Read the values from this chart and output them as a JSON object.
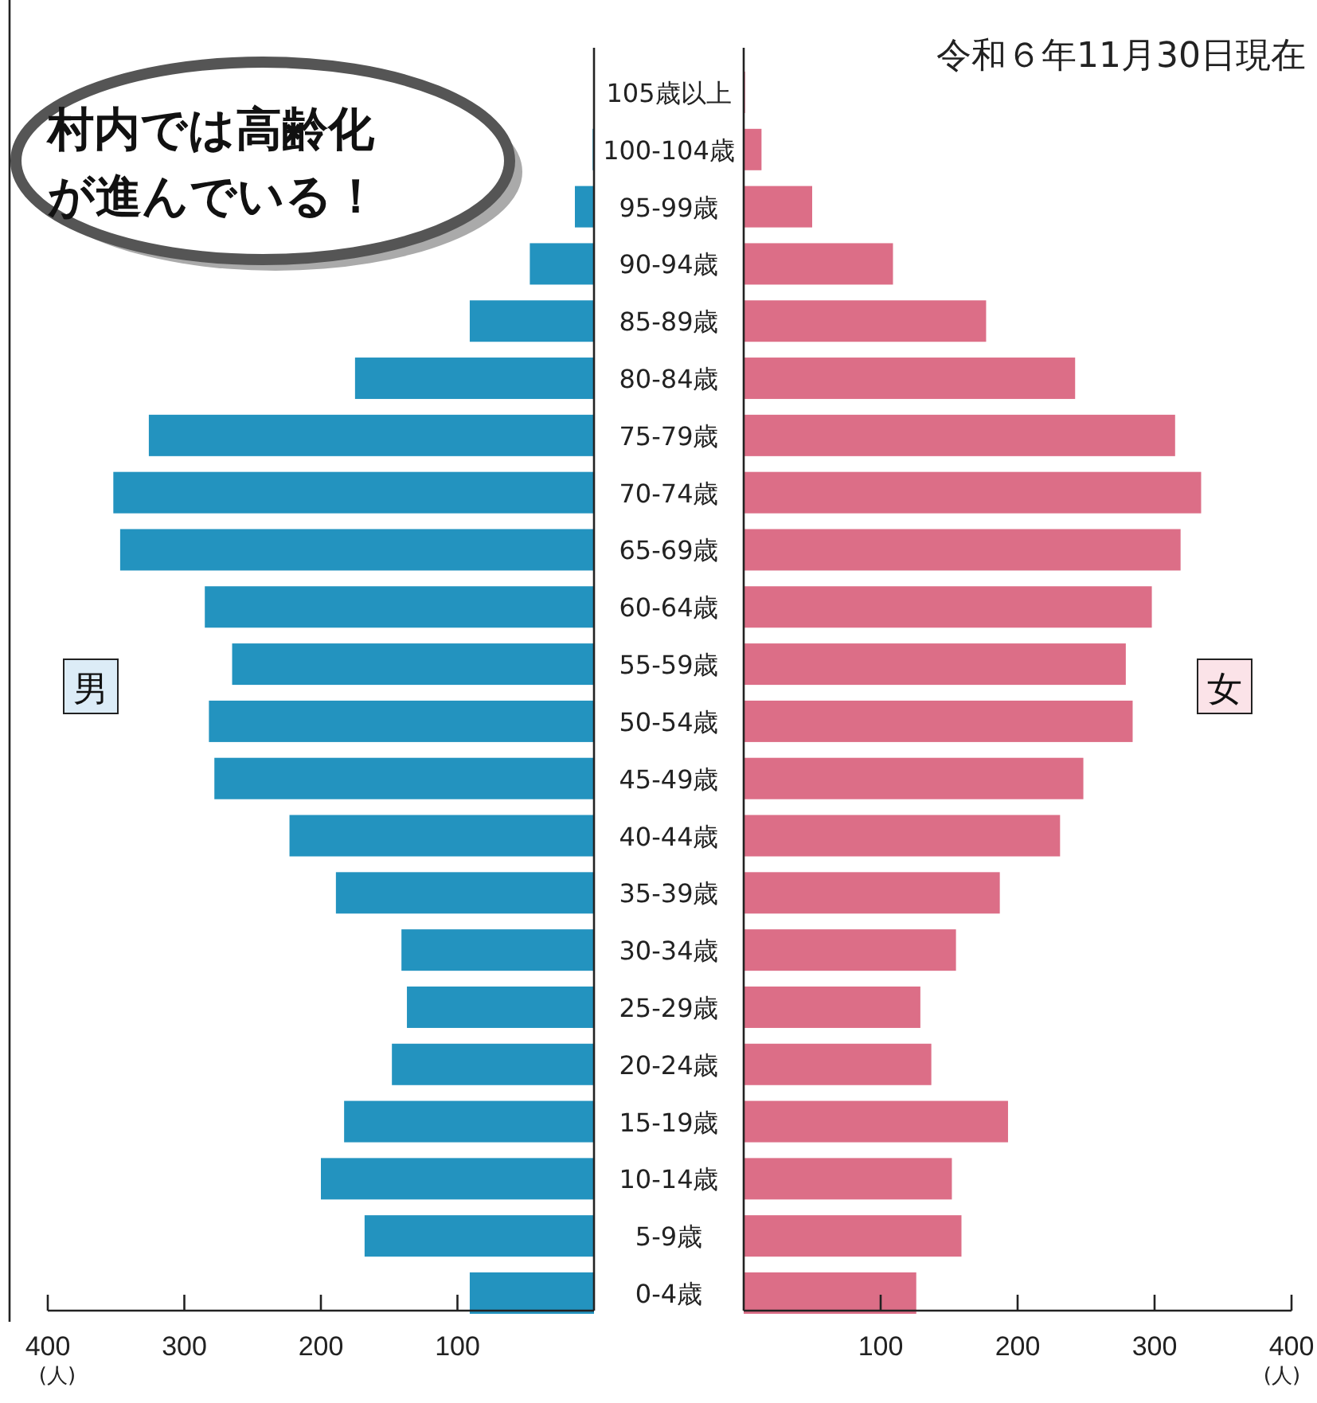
{
  "chart_data": [
    {
      "type": "bar",
      "orientation": "horizontal",
      "annotations": [
        "村内では高齢化が進んでいる！"
      ],
      "xlabel": "(人)",
      "xlim": [
        400,
        0
      ],
      "xticks": [
        400,
        300,
        200,
        100
      ],
      "tick_labels": "x",
      "categories": [
        null,
        null,
        null,
        null,
        null,
        null,
        null,
        null,
        null,
        null,
        null,
        null,
        null,
        null,
        null,
        null,
        null,
        null,
        null,
        null,
        null,
        null
      ],
      "series": [
        {
          "name": "男",
          "color": "#2393bf",
          "values": [
            0,
            1,
            14,
            47,
            91,
            175,
            326,
            352,
            347,
            285,
            265,
            282,
            278,
            223,
            189,
            141,
            137,
            148,
            183,
            200,
            168,
            91
          ]
        }
      ]
    },
    {
      "type": "bar",
      "orientation": "horizontal",
      "subtitle": "令和６年11月30日現在",
      "xlabel": "(人)",
      "xlim": [
        0,
        400
      ],
      "xticks": [
        100,
        200,
        300,
        400
      ],
      "categories": [
        "105歳以上",
        "100-104歳",
        "95-99歳",
        "90-94歳",
        "85-89歳",
        "80-84歳",
        "75-79歳",
        "70-74歳",
        "65-69歳",
        "60-64歳",
        "55-59歳",
        "50-54歳",
        "45-49歳",
        "40-44歳",
        "35-39歳",
        "30-34歳",
        "25-29歳",
        "20-24歳",
        "15-19歳",
        "10-14歳",
        "5-9歳",
        "0-4歳"
      ],
      "series": [
        {
          "name": "女",
          "color": "#dc6e87",
          "values": [
            1,
            13,
            50,
            109,
            177,
            242,
            315,
            334,
            319,
            298,
            279,
            284,
            248,
            231,
            187,
            155,
            129,
            137,
            193,
            152,
            159,
            126
          ]
        }
      ]
    }
  ]
}
